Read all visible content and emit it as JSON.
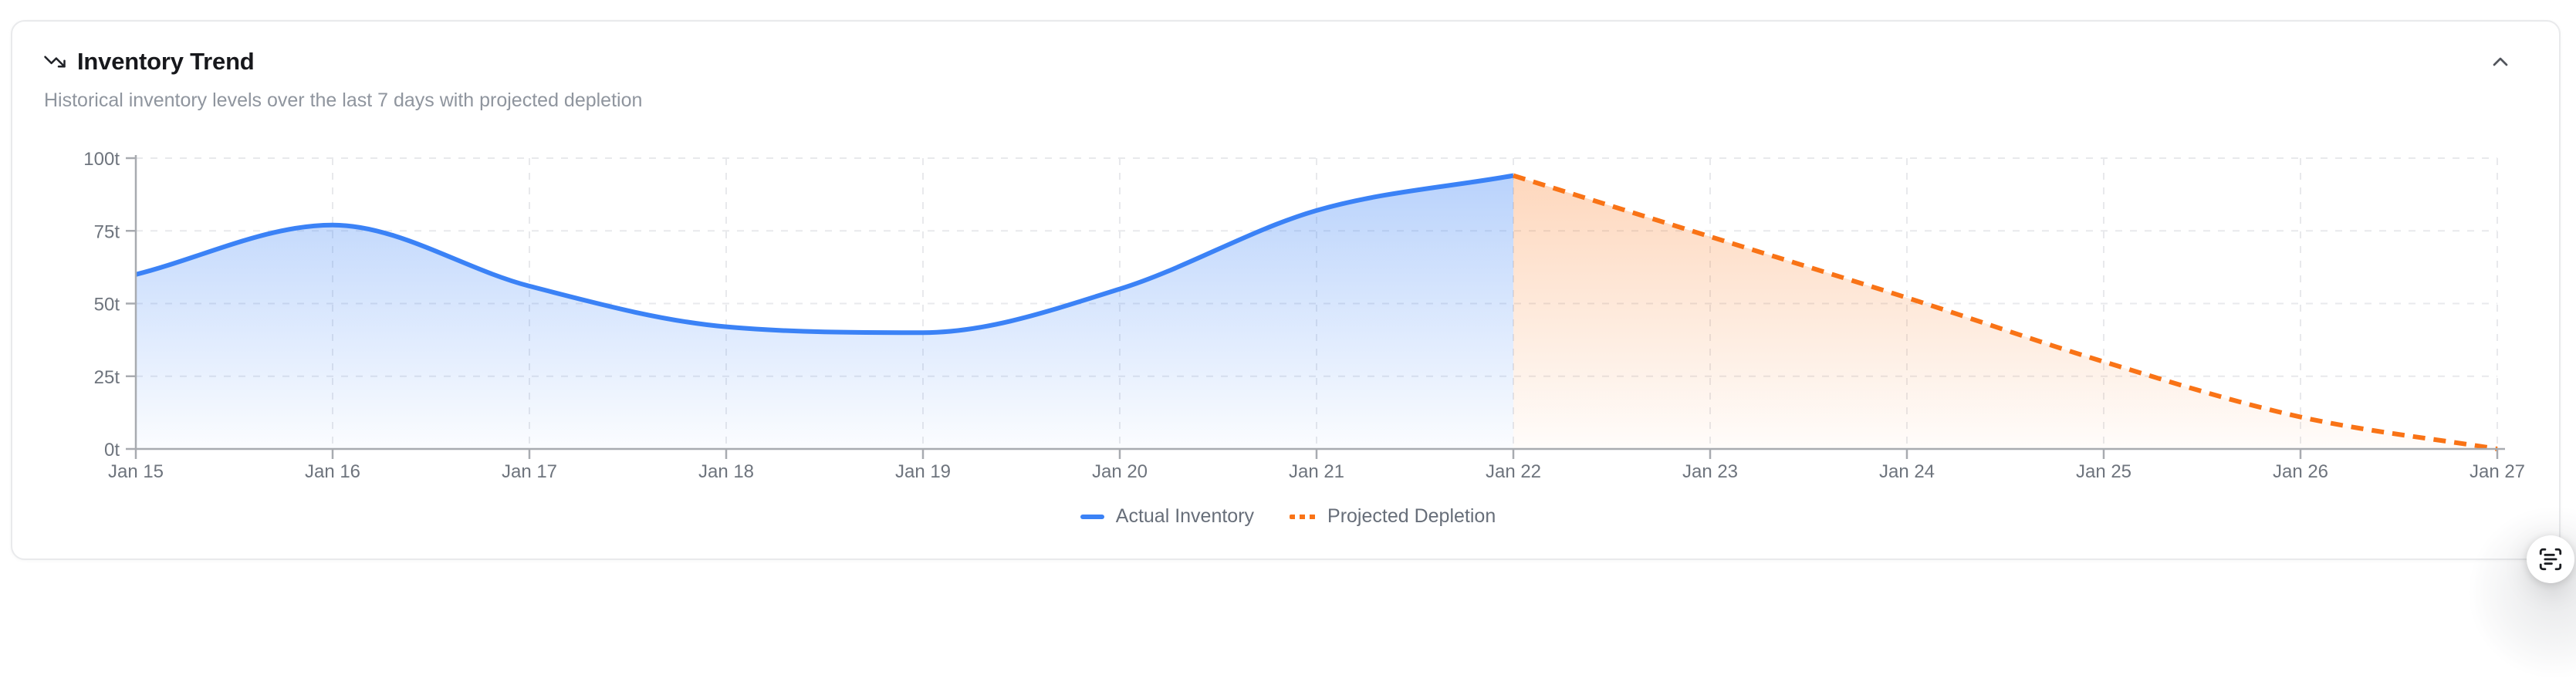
{
  "card": {
    "title": "Inventory Trend",
    "subtitle": "Historical inventory levels over the last 7 days with projected depletion"
  },
  "icons": {
    "title_icon": "trending-down-icon",
    "collapse_icon": "chevron-up-icon",
    "fab_icon": "scan-text-icon"
  },
  "colors": {
    "actual_line": "#3b82f6",
    "projected_line": "#f97316",
    "axis_line": "#a8abb0",
    "gridline": "#e8e9ec",
    "tick_label": "#6e747d",
    "title_text": "#17181c",
    "subtitle_text": "#8f959e",
    "legend_text": "#676e79"
  },
  "chart_data": {
    "type": "area",
    "title": "Inventory Trend",
    "xlabel": "",
    "ylabel": "",
    "y_unit": "t",
    "ylim": [
      0,
      100
    ],
    "grid": true,
    "legend_position": "bottom-center",
    "x_labels": [
      "Jan 15",
      "Jan 16",
      "Jan 17",
      "Jan 18",
      "Jan 19",
      "Jan 20",
      "Jan 21",
      "Jan 22",
      "Jan 23",
      "Jan 24",
      "Jan 25",
      "Jan 26",
      "Jan 27"
    ],
    "y_tick_labels": [
      "0t",
      "25t",
      "50t",
      "75t",
      "100t"
    ],
    "y_tick_values": [
      0,
      25,
      50,
      75,
      100
    ],
    "series": [
      {
        "name": "Actual Inventory",
        "color": "#3b82f6",
        "line_style": "solid",
        "fill": "gradient",
        "fill_from_opacity": 0.38,
        "fill_to_opacity": 0.02,
        "x_indices": [
          0,
          1,
          2,
          3,
          4,
          5,
          6,
          7
        ],
        "values": [
          60,
          77,
          56,
          42,
          40,
          55,
          82,
          94
        ]
      },
      {
        "name": "Projected Depletion",
        "color": "#f97316",
        "line_style": "dashed",
        "fill": "gradient",
        "fill_from_opacity": 0.3,
        "fill_to_opacity": 0.02,
        "x_indices": [
          7,
          8,
          9,
          10,
          11,
          12
        ],
        "values": [
          94,
          73,
          52,
          30,
          11,
          0
        ]
      }
    ]
  }
}
